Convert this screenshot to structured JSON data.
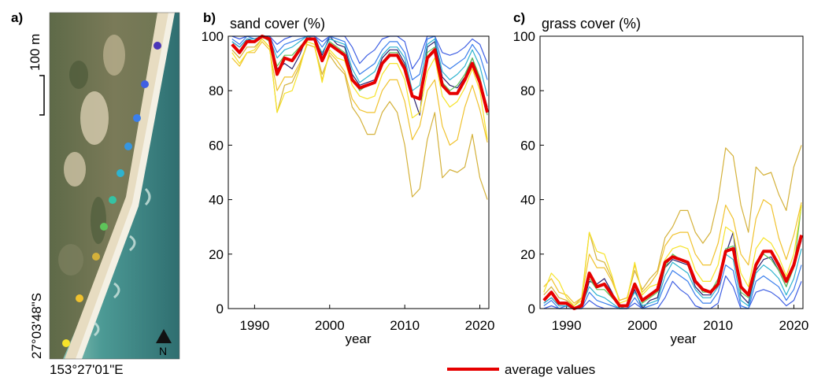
{
  "panel_a": {
    "letter": "a)",
    "scale_label": "100 m",
    "north_label": "N",
    "lat_label": "27°03'48\"S",
    "lon_label": "153°27'01\"E",
    "transect_colors": [
      "#4a36b8",
      "#3f5fe3",
      "#3a7eec",
      "#3696e0",
      "#2eb3cf",
      "#35c2a4",
      "#5ec45a",
      "#d4b13a",
      "#f0c22e",
      "#f6e32a"
    ]
  },
  "legend": {
    "label": "average values",
    "color": "#e60000"
  },
  "chart_data": [
    {
      "type": "line",
      "panel": "b)",
      "title": "sand cover (%)",
      "xlabel": "year",
      "ylabel": "",
      "xlim": [
        1986.5,
        2021.2
      ],
      "ylim": [
        0,
        100
      ],
      "xticks": [
        1990,
        2000,
        2010,
        2020
      ],
      "yticks": [
        0,
        20,
        40,
        60,
        80,
        100
      ],
      "x": [
        1987,
        1988,
        1989,
        1990,
        1991,
        1992,
        1993,
        1994,
        1995,
        1996,
        1997,
        1998,
        1999,
        2000,
        2001,
        2002,
        2003,
        2004,
        2005,
        2006,
        2007,
        2008,
        2009,
        2010,
        2011,
        2012,
        2013,
        2014,
        2015,
        2016,
        2017,
        2018,
        2019,
        2020,
        2021
      ],
      "average": {
        "name": "average values",
        "color": "#e60000",
        "values": [
          97,
          94,
          98,
          98,
          100,
          99,
          86,
          92,
          91,
          95,
          99,
          99,
          91,
          97,
          95,
          93,
          84,
          81,
          82,
          83,
          90,
          93,
          93,
          88,
          78,
          77,
          92,
          95,
          82,
          79,
          79,
          84,
          90,
          83,
          72
        ]
      },
      "series": [
        {
          "color": "#2b2470",
          "values": [
            98,
            96,
            99,
            98,
            100,
            100,
            88,
            90,
            88,
            93,
            100,
            100,
            93,
            100,
            97,
            96,
            86,
            82,
            83,
            84,
            92,
            95,
            95,
            90,
            79,
            71,
            96,
            98,
            85,
            82,
            81,
            85,
            92,
            84,
            74
          ]
        },
        {
          "color": "#3f5fe3",
          "values": [
            100,
            99,
            100,
            100,
            100,
            100,
            97,
            99,
            100,
            100,
            100,
            100,
            98,
            100,
            100,
            100,
            96,
            90,
            93,
            95,
            99,
            100,
            100,
            98,
            88,
            92,
            100,
            100,
            94,
            93,
            94,
            96,
            99,
            97,
            90
          ]
        },
        {
          "color": "#3a7eec",
          "values": [
            99,
            97,
            100,
            99,
            100,
            100,
            94,
            97,
            98,
            99,
            100,
            100,
            96,
            100,
            99,
            98,
            91,
            86,
            88,
            90,
            95,
            98,
            98,
            94,
            84,
            86,
            99,
            100,
            90,
            88,
            90,
            92,
            97,
            93,
            84
          ]
        },
        {
          "color": "#2eb3cf",
          "values": [
            98,
            96,
            99,
            99,
            100,
            99,
            92,
            95,
            96,
            98,
            100,
            99,
            94,
            99,
            98,
            97,
            88,
            83,
            85,
            87,
            93,
            96,
            96,
            92,
            80,
            82,
            97,
            99,
            87,
            84,
            86,
            89,
            95,
            89,
            78
          ]
        },
        {
          "color": "#5ec45a",
          "values": [
            97,
            94,
            98,
            98,
            100,
            98,
            89,
            93,
            93,
            96,
            99,
            99,
            91,
            98,
            96,
            94,
            85,
            80,
            82,
            83,
            90,
            94,
            94,
            89,
            78,
            77,
            94,
            96,
            83,
            80,
            82,
            86,
            92,
            85,
            71
          ]
        },
        {
          "color": "#d4b13a",
          "values": [
            95,
            92,
            96,
            96,
            99,
            96,
            72,
            82,
            83,
            89,
            97,
            96,
            86,
            93,
            89,
            86,
            74,
            70,
            64,
            64,
            72,
            76,
            72,
            60,
            41,
            44,
            62,
            72,
            48,
            51,
            50,
            52,
            64,
            48,
            40
          ]
        },
        {
          "color": "#f0c22e",
          "values": [
            92,
            89,
            94,
            94,
            98,
            95,
            80,
            85,
            85,
            90,
            97,
            96,
            84,
            94,
            91,
            87,
            77,
            73,
            72,
            72,
            80,
            84,
            84,
            76,
            62,
            67,
            80,
            84,
            67,
            60,
            62,
            74,
            82,
            73,
            61
          ]
        },
        {
          "color": "#f6e32a",
          "values": [
            94,
            90,
            94,
            95,
            99,
            96,
            72,
            79,
            80,
            88,
            98,
            97,
            83,
            95,
            92,
            91,
            82,
            78,
            77,
            78,
            86,
            90,
            90,
            84,
            70,
            72,
            87,
            92,
            78,
            74,
            76,
            81,
            88,
            80,
            62
          ]
        }
      ]
    },
    {
      "type": "line",
      "panel": "c)",
      "title": "grass cover (%)",
      "xlabel": "year",
      "ylabel": "",
      "xlim": [
        1986.5,
        2021.2
      ],
      "ylim": [
        0,
        100
      ],
      "xticks": [
        1990,
        2000,
        2010,
        2020
      ],
      "yticks": [
        0,
        20,
        40,
        60,
        80,
        100
      ],
      "x": [
        1987,
        1988,
        1989,
        1990,
        1991,
        1992,
        1993,
        1994,
        1995,
        1996,
        1997,
        1998,
        1999,
        2000,
        2001,
        2002,
        2003,
        2004,
        2005,
        2006,
        2007,
        2008,
        2009,
        2010,
        2011,
        2012,
        2013,
        2014,
        2015,
        2016,
        2017,
        2018,
        2019,
        2020,
        2021
      ],
      "average": {
        "name": "average values",
        "color": "#e60000",
        "values": [
          3,
          6,
          2,
          2,
          0,
          1,
          13,
          8,
          9,
          5,
          1,
          1,
          9,
          3,
          5,
          7,
          17,
          19,
          18,
          17,
          10,
          7,
          6,
          9,
          21,
          22,
          8,
          5,
          16,
          21,
          21,
          16,
          10,
          16,
          27
        ]
      },
      "series": [
        {
          "color": "#2b2470",
          "values": [
            2,
            4,
            1,
            1,
            0,
            0,
            10,
            9,
            11,
            6,
            0,
            0,
            7,
            0,
            3,
            4,
            15,
            18,
            17,
            16,
            8,
            5,
            5,
            10,
            20,
            28,
            5,
            2,
            14,
            18,
            19,
            14,
            8,
            16,
            25
          ]
        },
        {
          "color": "#3f5fe3",
          "values": [
            0,
            1,
            0,
            0,
            0,
            0,
            3,
            1,
            0,
            0,
            0,
            0,
            2,
            0,
            0,
            0,
            4,
            10,
            7,
            5,
            1,
            0,
            0,
            2,
            12,
            8,
            0,
            0,
            6,
            7,
            6,
            4,
            1,
            3,
            10
          ]
        },
        {
          "color": "#3a7eec",
          "values": [
            1,
            3,
            0,
            1,
            0,
            0,
            6,
            3,
            2,
            1,
            0,
            0,
            4,
            0,
            1,
            2,
            9,
            14,
            12,
            10,
            5,
            2,
            2,
            6,
            16,
            14,
            1,
            0,
            10,
            12,
            10,
            8,
            3,
            7,
            16
          ]
        },
        {
          "color": "#2eb3cf",
          "values": [
            2,
            4,
            1,
            1,
            0,
            1,
            8,
            5,
            4,
            2,
            0,
            1,
            6,
            1,
            2,
            3,
            12,
            17,
            15,
            13,
            7,
            4,
            4,
            8,
            20,
            18,
            3,
            1,
            13,
            16,
            14,
            11,
            5,
            11,
            22
          ]
        },
        {
          "color": "#5ec45a",
          "values": [
            3,
            6,
            2,
            2,
            0,
            2,
            11,
            7,
            7,
            4,
            1,
            1,
            9,
            2,
            4,
            6,
            15,
            20,
            18,
            17,
            10,
            6,
            6,
            11,
            22,
            23,
            6,
            4,
            17,
            20,
            18,
            14,
            8,
            15,
            38
          ]
        },
        {
          "color": "#d4b13a",
          "values": [
            5,
            8,
            4,
            3,
            1,
            4,
            28,
            18,
            17,
            11,
            3,
            4,
            14,
            7,
            11,
            14,
            26,
            30,
            36,
            36,
            28,
            24,
            28,
            40,
            59,
            56,
            38,
            28,
            52,
            49,
            50,
            42,
            36,
            52,
            60
          ]
        },
        {
          "color": "#f0c22e",
          "values": [
            8,
            11,
            6,
            5,
            2,
            4,
            20,
            15,
            15,
            10,
            3,
            4,
            16,
            6,
            9,
            13,
            23,
            27,
            28,
            28,
            20,
            16,
            16,
            24,
            38,
            33,
            20,
            16,
            33,
            40,
            38,
            26,
            18,
            27,
            39
          ]
        },
        {
          "color": "#f6e32a",
          "values": [
            6,
            13,
            10,
            4,
            1,
            3,
            28,
            21,
            20,
            12,
            2,
            3,
            17,
            5,
            8,
            9,
            18,
            22,
            23,
            22,
            14,
            10,
            10,
            16,
            30,
            28,
            13,
            8,
            22,
            26,
            24,
            19,
            12,
            20,
            38
          ]
        }
      ]
    }
  ]
}
